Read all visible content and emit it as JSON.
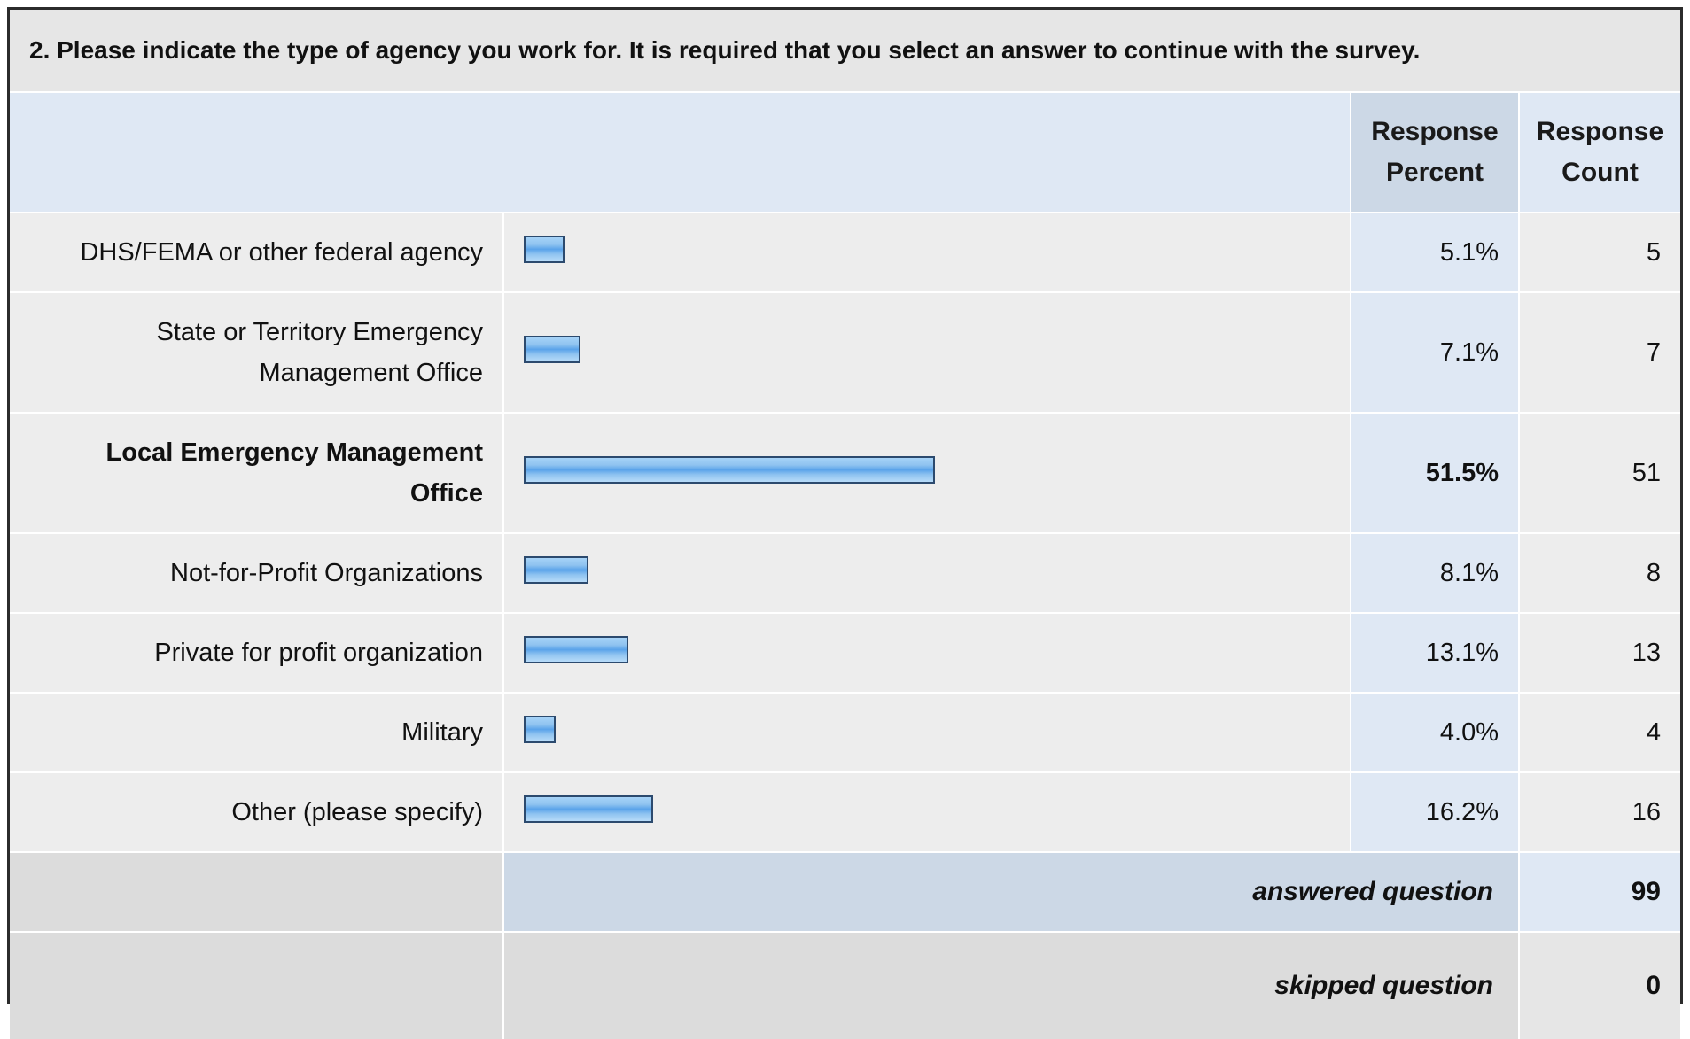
{
  "question": "2. Please indicate the type of agency you work for. It is required that you select an answer to continue with the survey.",
  "headers": {
    "percent_line1": "Response",
    "percent_line2": "Percent",
    "count_line1": "Response",
    "count_line2": "Count"
  },
  "chart_data": {
    "type": "bar",
    "title": "2. Please indicate the type of agency you work for. It is required that you select an answer to continue with the survey.",
    "categories": [
      "DHS/FEMA or other federal agency",
      "State or Territory Emergency Management Office",
      "Local Emergency Management Office",
      "Not-for-Profit Organizations",
      "Private for profit organization",
      "Military",
      "Other (please specify)"
    ],
    "label_lines": [
      [
        "DHS/FEMA or other federal agency"
      ],
      [
        "State or Territory Emergency",
        "Management Office"
      ],
      [
        "Local Emergency Management",
        "Office"
      ],
      [
        "Not-for-Profit Organizations"
      ],
      [
        "Private for profit organization"
      ],
      [
        "Military"
      ],
      [
        "Other (please specify)"
      ]
    ],
    "values": [
      5.1,
      7.1,
      51.5,
      8.1,
      13.1,
      4.0,
      16.2
    ],
    "percent_labels": [
      "5.1%",
      "7.1%",
      "51.5%",
      "8.1%",
      "13.1%",
      "4.0%",
      "16.2%"
    ],
    "counts": [
      "5",
      "7",
      "51",
      "8",
      "13",
      "4",
      "16"
    ],
    "highlighted_index": 2,
    "xlim": [
      0,
      100
    ],
    "orientation": "horizontal"
  },
  "footer": {
    "answered_label": "answered question",
    "answered_value": "99",
    "skipped_label": "skipped question",
    "skipped_value": "0"
  },
  "colors": {
    "header_blue": "#dfe8f4",
    "header_blue_dark": "#ccd8e6",
    "row_gray": "#ededed",
    "bar_fill": "#8fc3f0",
    "bar_border": "#2c4a6e"
  }
}
